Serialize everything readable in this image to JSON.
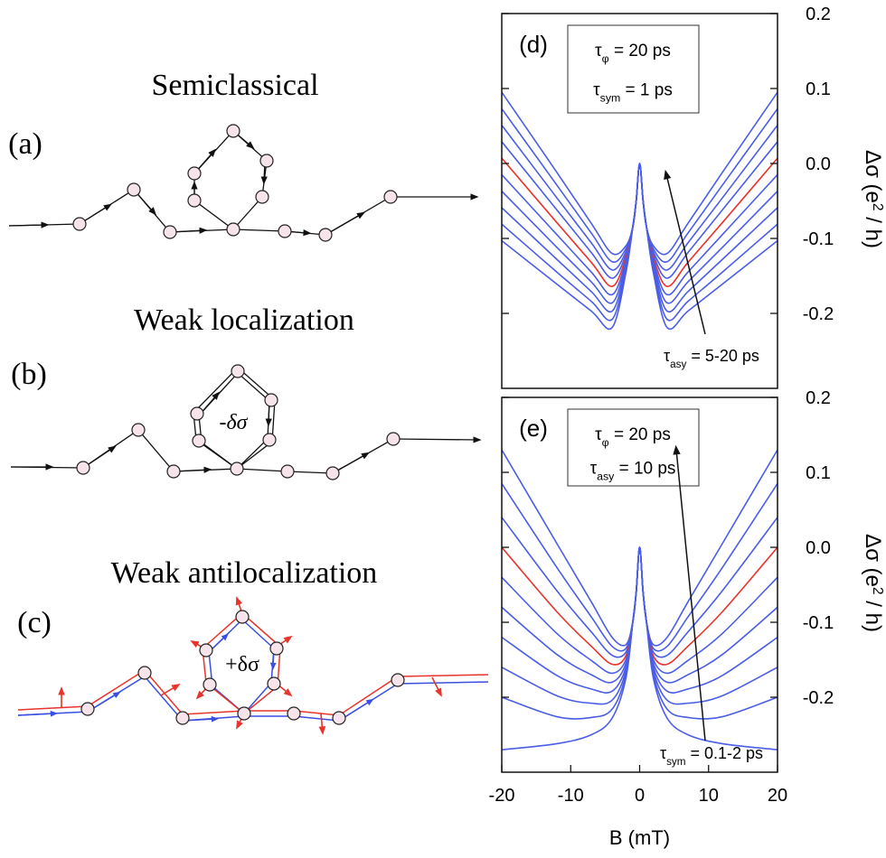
{
  "diagrams": [
    {
      "label": "(a)",
      "title": "Semiclassical"
    },
    {
      "label": "(b)",
      "title": "Weak localization",
      "loop_label": "-δσ"
    },
    {
      "label": "(c)",
      "title": "Weak antilocalization",
      "loop_label": "+δσ"
    }
  ],
  "chart_data": [
    {
      "type": "line",
      "panel_label": "(d)",
      "params": [
        {
          "symbol": "τ",
          "sub": "φ",
          "text": " = 20 ps"
        },
        {
          "symbol": "τ",
          "sub": "sym",
          "text": " = 1 ps"
        }
      ],
      "note": {
        "symbol": "τ",
        "sub": "asy",
        "text": " = 5-20 ps"
      },
      "ylabel": {
        "text": "Δσ (e",
        "sup": "2",
        "tail": " / h)"
      },
      "xlim": [
        -20,
        20
      ],
      "ylim": [
        -0.3,
        0.2
      ],
      "yticks": [
        -0.2,
        -0.1,
        {
          "value": 0,
          "label": "0.0"
        },
        0.1,
        0.2
      ],
      "x": [
        -20,
        -12,
        -7,
        -4,
        -2,
        -1,
        -0.5,
        0,
        0.5,
        1,
        2,
        4,
        7,
        12,
        20
      ],
      "series": [
        {
          "color": "#4a5de6",
          "values": [
            0.095,
            -0.012,
            -0.08,
            -0.12,
            -0.11,
            -0.085,
            -0.05,
            0,
            -0.05,
            -0.085,
            -0.11,
            -0.12,
            -0.08,
            -0.012,
            0.095
          ]
        },
        {
          "color": "#4a5de6",
          "values": [
            0.073,
            -0.029,
            -0.093,
            -0.131,
            -0.114,
            -0.085,
            -0.05,
            0,
            -0.05,
            -0.085,
            -0.114,
            -0.131,
            -0.093,
            -0.029,
            0.073
          ]
        },
        {
          "color": "#4a5de6",
          "values": [
            0.051,
            -0.046,
            -0.106,
            -0.142,
            -0.118,
            -0.085,
            -0.05,
            0,
            -0.05,
            -0.085,
            -0.118,
            -0.142,
            -0.106,
            -0.046,
            0.051
          ]
        },
        {
          "color": "#4a5de6",
          "values": [
            0.029,
            -0.062,
            -0.119,
            -0.153,
            -0.122,
            -0.085,
            -0.05,
            0,
            -0.05,
            -0.085,
            -0.122,
            -0.153,
            -0.119,
            -0.062,
            0.029
          ]
        },
        {
          "color": "#e8342a",
          "values": [
            0.007,
            -0.079,
            -0.132,
            -0.164,
            -0.126,
            -0.085,
            -0.05,
            0,
            -0.05,
            -0.085,
            -0.126,
            -0.164,
            -0.132,
            -0.079,
            0.007
          ]
        },
        {
          "color": "#4a5de6",
          "values": [
            -0.015,
            -0.095,
            -0.145,
            -0.175,
            -0.13,
            -0.085,
            -0.05,
            0,
            -0.05,
            -0.085,
            -0.13,
            -0.175,
            -0.145,
            -0.095,
            -0.015
          ]
        },
        {
          "color": "#4a5de6",
          "values": [
            -0.037,
            -0.112,
            -0.158,
            -0.186,
            -0.134,
            -0.085,
            -0.05,
            0,
            -0.05,
            -0.085,
            -0.134,
            -0.186,
            -0.158,
            -0.112,
            -0.037
          ]
        },
        {
          "color": "#4a5de6",
          "values": [
            -0.059,
            -0.128,
            -0.171,
            -0.197,
            -0.138,
            -0.085,
            -0.05,
            0,
            -0.05,
            -0.085,
            -0.138,
            -0.197,
            -0.171,
            -0.128,
            -0.059
          ]
        },
        {
          "color": "#4a5de6",
          "values": [
            -0.081,
            -0.145,
            -0.184,
            -0.208,
            -0.142,
            -0.085,
            -0.05,
            0,
            -0.05,
            -0.085,
            -0.142,
            -0.208,
            -0.184,
            -0.145,
            -0.081
          ]
        },
        {
          "color": "#4a5de6",
          "values": [
            -0.103,
            -0.161,
            -0.197,
            -0.219,
            -0.146,
            -0.085,
            -0.05,
            0,
            -0.05,
            -0.085,
            -0.146,
            -0.219,
            -0.197,
            -0.161,
            -0.103
          ]
        }
      ]
    },
    {
      "type": "line",
      "panel_label": "(e)",
      "params": [
        {
          "symbol": "τ",
          "sub": "φ",
          "text": " = 20 ps"
        },
        {
          "symbol": "τ",
          "sub": "asy",
          "text": " = 10 ps"
        }
      ],
      "note": {
        "symbol": "τ",
        "sub": "sym",
        "text": " = 0.1-2 ps"
      },
      "ylabel": {
        "text": "Δσ (e",
        "sup": "2",
        "tail": " / h)"
      },
      "xlabel": "B (mT)",
      "xlim": [
        -20,
        20
      ],
      "ylim": [
        -0.3,
        0.2
      ],
      "xticks": [
        -20,
        -10,
        0,
        10,
        20
      ],
      "yticks": [
        -0.2,
        -0.1,
        {
          "value": 0,
          "label": "0.0"
        },
        0.1,
        0.2
      ],
      "x": [
        -20,
        -12,
        -7,
        -4,
        -2,
        -1,
        -0.5,
        0,
        0.5,
        1,
        2,
        4,
        7,
        12,
        20
      ],
      "series": [
        {
          "color": "#4a5de6",
          "values": [
            0.13,
            0.005,
            -0.073,
            -0.12,
            -0.13,
            -0.1,
            -0.06,
            0,
            -0.06,
            -0.1,
            -0.13,
            -0.12,
            -0.073,
            0.005,
            0.13
          ]
        },
        {
          "color": "#4a5de6",
          "values": [
            0.085,
            -0.027,
            -0.093,
            -0.132,
            -0.135,
            -0.1,
            -0.06,
            0,
            -0.06,
            -0.1,
            -0.135,
            -0.132,
            -0.093,
            -0.027,
            0.085
          ]
        },
        {
          "color": "#4a5de6",
          "values": [
            0.04,
            -0.058,
            -0.113,
            -0.144,
            -0.14,
            -0.1,
            -0.06,
            0,
            -0.06,
            -0.1,
            -0.14,
            -0.144,
            -0.113,
            -0.058,
            0.04
          ]
        },
        {
          "color": "#e8342a",
          "values": [
            0.0,
            -0.086,
            -0.132,
            -0.156,
            -0.145,
            -0.1,
            -0.06,
            0,
            -0.06,
            -0.1,
            -0.145,
            -0.156,
            -0.132,
            -0.086,
            0.0
          ]
        },
        {
          "color": "#4a5de6",
          "values": [
            -0.04,
            -0.115,
            -0.151,
            -0.168,
            -0.15,
            -0.1,
            -0.06,
            0,
            -0.06,
            -0.1,
            -0.15,
            -0.168,
            -0.151,
            -0.115,
            -0.04
          ]
        },
        {
          "color": "#4a5de6",
          "values": [
            -0.08,
            -0.143,
            -0.17,
            -0.18,
            -0.155,
            -0.1,
            -0.06,
            0,
            -0.06,
            -0.1,
            -0.155,
            -0.18,
            -0.17,
            -0.143,
            -0.08
          ]
        },
        {
          "color": "#4a5de6",
          "values": [
            -0.12,
            -0.171,
            -0.189,
            -0.192,
            -0.16,
            -0.1,
            -0.06,
            0,
            -0.06,
            -0.1,
            -0.16,
            -0.192,
            -0.189,
            -0.171,
            -0.12
          ]
        },
        {
          "color": "#4a5de6",
          "values": [
            -0.16,
            -0.198,
            -0.208,
            -0.204,
            -0.165,
            -0.1,
            -0.06,
            0,
            -0.06,
            -0.1,
            -0.165,
            -0.204,
            -0.208,
            -0.198,
            -0.16
          ]
        },
        {
          "color": "#4a5de6",
          "values": [
            -0.2,
            -0.226,
            -0.227,
            -0.216,
            -0.17,
            -0.1,
            -0.06,
            0,
            -0.06,
            -0.1,
            -0.17,
            -0.216,
            -0.227,
            -0.226,
            -0.2
          ]
        },
        {
          "color": "#4a5de6",
          "values": [
            -0.27,
            -0.262,
            -0.25,
            -0.228,
            -0.175,
            -0.1,
            -0.06,
            0,
            -0.06,
            -0.1,
            -0.175,
            -0.228,
            -0.25,
            -0.262,
            -0.27
          ]
        }
      ]
    }
  ]
}
